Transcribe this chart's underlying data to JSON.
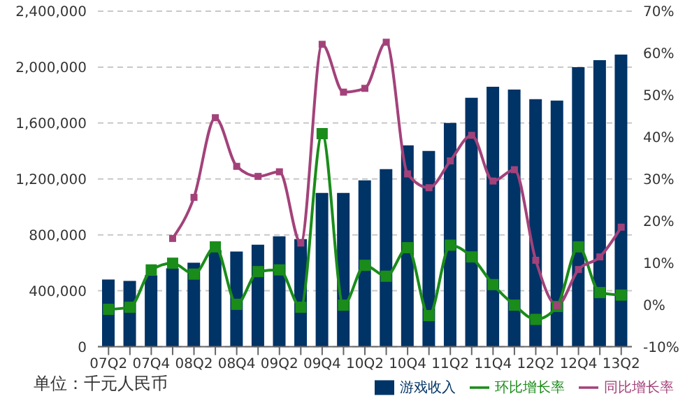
{
  "chart_data": {
    "type": "bar",
    "categories": [
      "07Q2",
      null,
      "07Q4",
      null,
      "08Q2",
      null,
      "08Q4",
      null,
      "09Q2",
      null,
      "09Q4",
      null,
      "10Q2",
      null,
      "10Q4",
      null,
      "11Q2",
      null,
      "11Q4",
      null,
      "12Q2",
      null,
      "12Q4",
      null,
      "13Q2"
    ],
    "series": [
      {
        "name": "游戏收入",
        "color": "#003366",
        "values": [
          480000,
          470000,
          510000,
          560000,
          600000,
          690000,
          680000,
          730000,
          790000,
          770000,
          1100000,
          1100000,
          1190000,
          1270000,
          1440000,
          1400000,
          1600000,
          1780000,
          1860000,
          1840000,
          1770000,
          1760000,
          2000000,
          2050000,
          2090000
        ]
      },
      {
        "name": "环比增长率",
        "type": "line",
        "axis": "y2",
        "color": "#1a8c1a",
        "marker": "square",
        "values": [
          -1.1,
          -0.6,
          8.3,
          9.9,
          7.3,
          13.8,
          0.1,
          7.9,
          8.3,
          -0.6,
          40.8,
          -0.1,
          9.4,
          6.8,
          13.6,
          -2.6,
          14.2,
          11.4,
          4.8,
          -0.1,
          -3.5,
          -0.4,
          13.8,
          2.9,
          2.3
        ]
      },
      {
        "name": "同比增长率",
        "type": "line",
        "axis": "y2",
        "color": "#a3427a",
        "marker": "square",
        "values": [
          null,
          null,
          null,
          15.8,
          25.6,
          44.6,
          33.0,
          30.6,
          31.7,
          14.7,
          62.1,
          50.7,
          51.6,
          62.6,
          31.2,
          27.9,
          34.3,
          40.4,
          29.5,
          32.2,
          10.6,
          -0.2,
          8.4,
          11.4,
          18.5
        ]
      }
    ],
    "ylim": [
      0,
      2400000
    ],
    "yticks": [
      {
        "value": 0,
        "label": "0"
      },
      {
        "value": 400000,
        "label": "400,000"
      },
      {
        "value": 800000,
        "label": "800,000"
      },
      {
        "value": 1200000,
        "label": "1,200,000"
      },
      {
        "value": 1600000,
        "label": "1,600,000"
      },
      {
        "value": 2000000,
        "label": "2,000,000"
      },
      {
        "value": 2400000,
        "label": "2,400,000"
      }
    ],
    "y2lim": [
      -10,
      70
    ],
    "y2ticks": [
      {
        "value": -10,
        "label": "-10%"
      },
      {
        "value": 0,
        "label": "0%"
      },
      {
        "value": 10,
        "label": "10%"
      },
      {
        "value": 20,
        "label": "20%"
      },
      {
        "value": 30,
        "label": "30%"
      },
      {
        "value": 40,
        "label": "40%"
      },
      {
        "value": 50,
        "label": "50%"
      },
      {
        "value": 60,
        "label": "60%"
      },
      {
        "value": 70,
        "label": "70%"
      }
    ],
    "grid": "y",
    "legend": "bottom",
    "line_style": "solid",
    "annotations": [
      "单位：千元人民币"
    ]
  }
}
